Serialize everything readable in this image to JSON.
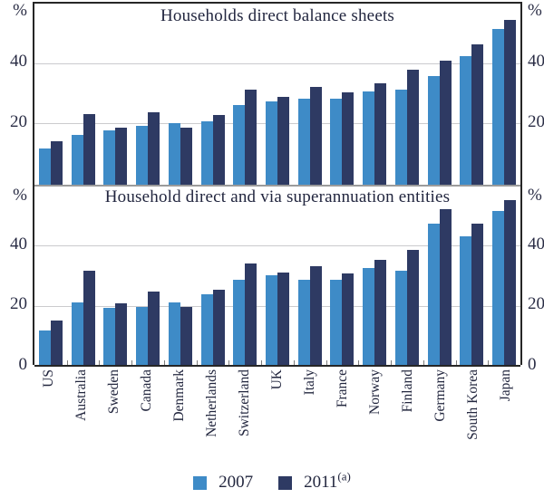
{
  "axes": {
    "unit_label": "%",
    "tick_40": "40",
    "tick_20": "20",
    "tick_0": "0"
  },
  "legend": {
    "label_2007": "2007",
    "label_2011": "2011",
    "superscript_2011": "(a)"
  },
  "colors": {
    "series_2007": "#3E8BC7",
    "series_2011": "#2E3A63",
    "gridline": "#cbcbce",
    "divider": "#9b9b9b",
    "axis": "#262626",
    "text": "#23273f"
  },
  "chart_data": [
    {
      "type": "bar",
      "title": "Households direct balance sheets",
      "categories": [
        "US",
        "Australia",
        "Sweden",
        "Canada",
        "Denmark",
        "Netherlands",
        "Switzerland",
        "UK",
        "Italy",
        "France",
        "Norway",
        "Finland",
        "Germany",
        "South Korea",
        "Japan"
      ],
      "series": [
        {
          "name": "2007",
          "values": [
            12,
            16.5,
            18,
            19.5,
            20.5,
            21,
            26.5,
            27.5,
            28.5,
            28.5,
            31,
            31.5,
            36,
            42.5,
            51.5
          ]
        },
        {
          "name": "2011",
          "values": [
            14.5,
            23.5,
            19,
            24,
            19,
            23,
            31.5,
            29,
            32.5,
            30.5,
            33.5,
            38,
            41,
            46.5,
            54.5
          ]
        }
      ],
      "ylabel": "%",
      "ylim": [
        0,
        60
      ],
      "yticks": [
        0,
        20,
        40
      ],
      "grid": true,
      "legend_position": "bottom"
    },
    {
      "type": "bar",
      "title": "Household direct and via superannuation entities",
      "categories": [
        "US",
        "Australia",
        "Sweden",
        "Canada",
        "Denmark",
        "Netherlands",
        "Switzerland",
        "UK",
        "Italy",
        "France",
        "Norway",
        "Finland",
        "Germany",
        "South Korea",
        "Japan"
      ],
      "series": [
        {
          "name": "2007",
          "values": [
            12,
            21.5,
            19.5,
            20,
            21.5,
            24,
            29,
            30.5,
            29,
            29,
            33,
            32,
            47.5,
            43.5,
            52
          ]
        },
        {
          "name": "2011",
          "values": [
            15.5,
            32,
            21,
            25,
            20,
            25.5,
            34.5,
            31.5,
            33.5,
            31,
            35.5,
            39,
            52.5,
            47.5,
            55.5
          ]
        }
      ],
      "ylabel": "%",
      "ylim": [
        0,
        60
      ],
      "yticks": [
        0,
        20,
        40
      ],
      "grid": true,
      "legend_position": "bottom"
    }
  ]
}
